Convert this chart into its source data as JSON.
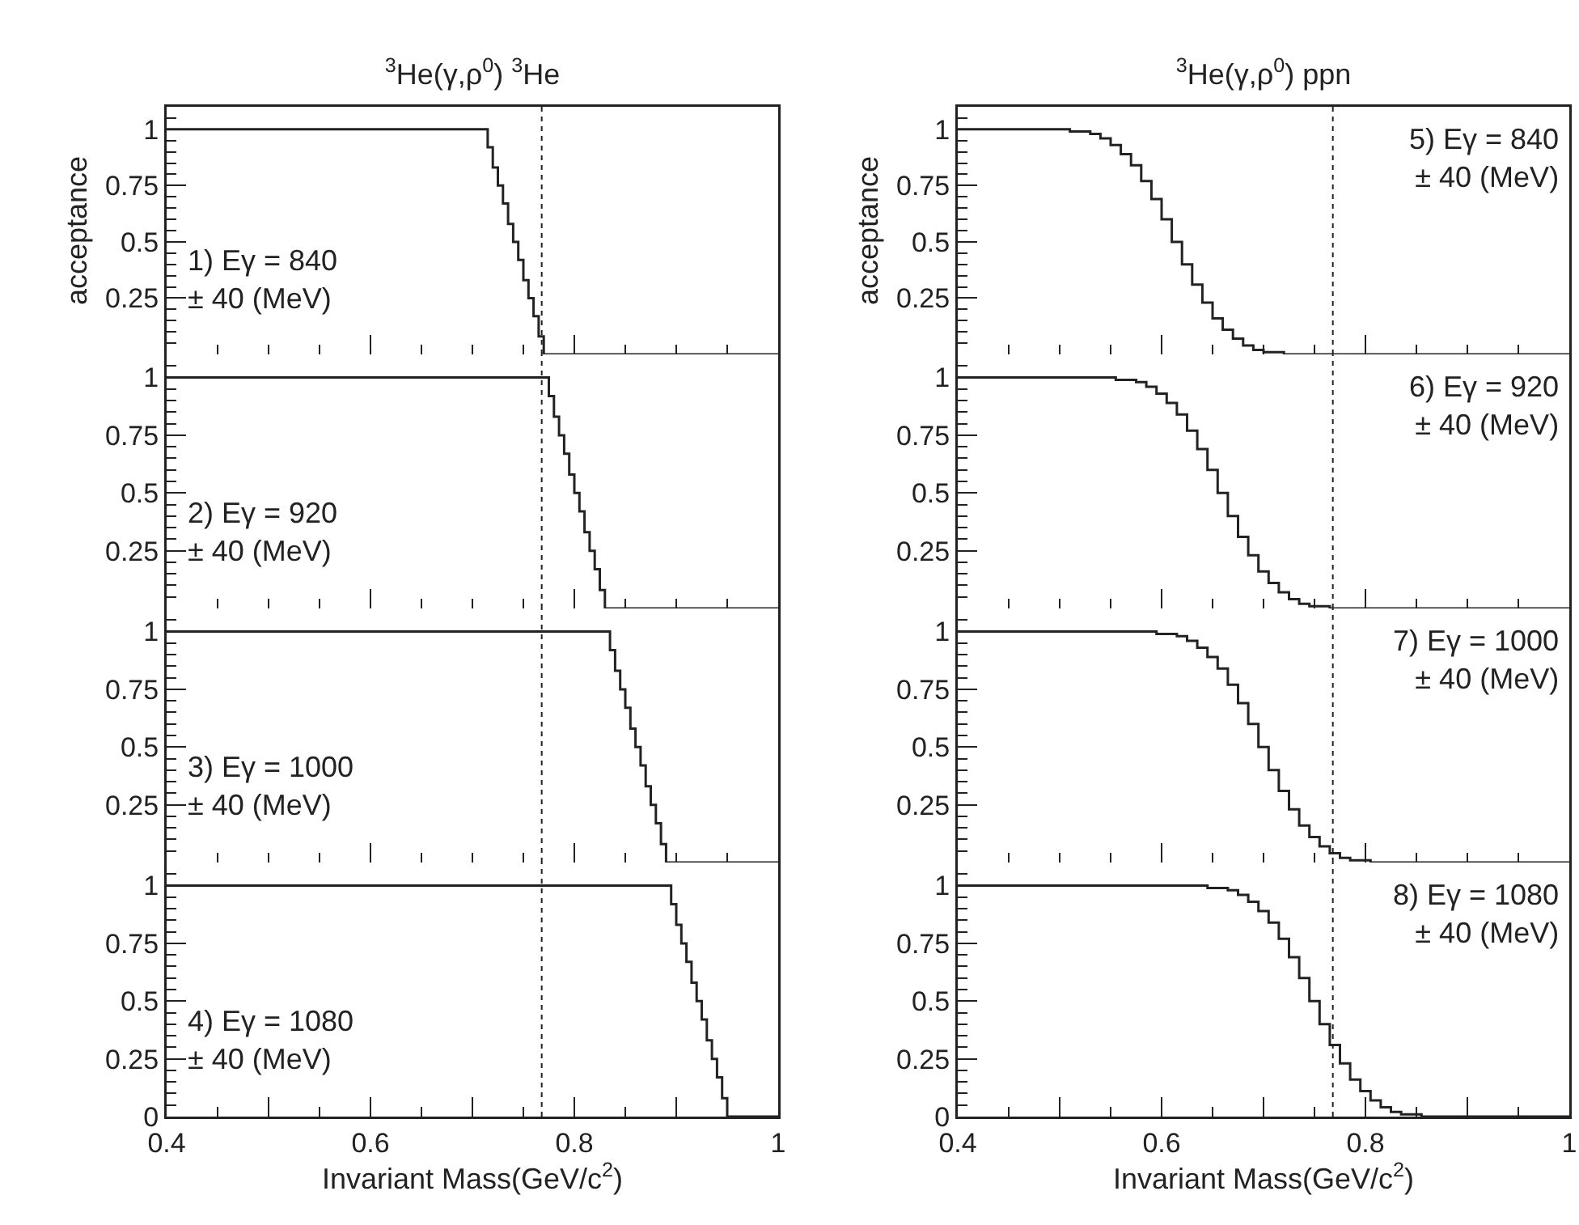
{
  "chart_data": [
    {
      "type": "step",
      "title": "$^{3}$He(γ,ρ$^{0}$) $^{3}$He",
      "ylabel": "acceptance",
      "color": "#222222",
      "x": [
        0.4,
        0.715,
        0.72,
        0.725,
        0.73,
        0.735,
        0.74,
        0.745,
        0.75,
        0.755,
        0.76,
        0.765,
        0.77,
        1
      ],
      "values": [
        1,
        0.92,
        0.83,
        0.75,
        0.67,
        0.58,
        0.5,
        0.42,
        0.33,
        0.25,
        0.17,
        0.08,
        0,
        0
      ],
      "xlim": [
        0.4,
        1
      ],
      "xticks": [
        0.4,
        {
          "value": 0.5,
          "label": null
        },
        0.6,
        {
          "value": 0.7,
          "label": null
        },
        0.8,
        {
          "value": 0.9,
          "label": null
        },
        1
      ],
      "ylim": [
        0,
        1.1
      ],
      "yticks": [
        0.25,
        0.5,
        0.75,
        1
      ],
      "tick_labels": "y",
      "ref_lines": [
        {
          "axis": "x",
          "value": 0.768,
          "line_style": "dotted"
        }
      ],
      "annotations": [
        "1) Eγ = 840\n± 40 (MeV)"
      ]
    },
    {
      "type": "step",
      "color": "#222222",
      "x": [
        0.4,
        0.775,
        0.78,
        0.785,
        0.79,
        0.795,
        0.8,
        0.805,
        0.81,
        0.815,
        0.82,
        0.825,
        0.83,
        1
      ],
      "values": [
        1,
        0.92,
        0.83,
        0.75,
        0.67,
        0.58,
        0.5,
        0.42,
        0.33,
        0.25,
        0.17,
        0.08,
        0,
        0
      ],
      "xlim": [
        0.4,
        1
      ],
      "xticks": [
        0.4,
        {
          "value": 0.5,
          "label": null
        },
        0.6,
        {
          "value": 0.7,
          "label": null
        },
        0.8,
        {
          "value": 0.9,
          "label": null
        },
        1
      ],
      "ylim": [
        0,
        1.1
      ],
      "yticks": [
        0.25,
        0.5,
        0.75,
        1
      ],
      "tick_labels": "y",
      "ref_lines": [
        {
          "axis": "x",
          "value": 0.768,
          "line_style": "dotted"
        }
      ],
      "annotations": [
        "2) Eγ = 920\n± 40 (MeV)"
      ]
    },
    {
      "type": "step",
      "color": "#222222",
      "x": [
        0.4,
        0.835,
        0.84,
        0.845,
        0.85,
        0.855,
        0.86,
        0.865,
        0.87,
        0.875,
        0.88,
        0.885,
        0.89,
        1
      ],
      "values": [
        1,
        0.92,
        0.83,
        0.75,
        0.67,
        0.58,
        0.5,
        0.42,
        0.33,
        0.25,
        0.17,
        0.08,
        0,
        0
      ],
      "xlim": [
        0.4,
        1
      ],
      "xticks": [
        0.4,
        {
          "value": 0.5,
          "label": null
        },
        0.6,
        {
          "value": 0.7,
          "label": null
        },
        0.8,
        {
          "value": 0.9,
          "label": null
        },
        1
      ],
      "ylim": [
        0,
        1.1
      ],
      "yticks": [
        0.25,
        0.5,
        0.75,
        1
      ],
      "tick_labels": "y",
      "ref_lines": [
        {
          "axis": "x",
          "value": 0.768,
          "line_style": "dotted"
        }
      ],
      "annotations": [
        "3) Eγ = 1000\n± 40 (MeV)"
      ]
    },
    {
      "type": "step",
      "xlabel": "Invariant Mass(GeV/c$^{2}$)",
      "color": "#222222",
      "x": [
        0.4,
        0.895,
        0.9,
        0.905,
        0.91,
        0.915,
        0.92,
        0.925,
        0.93,
        0.935,
        0.94,
        0.945,
        0.95,
        1
      ],
      "values": [
        1,
        0.92,
        0.83,
        0.75,
        0.67,
        0.58,
        0.5,
        0.42,
        0.33,
        0.25,
        0.17,
        0.08,
        0,
        0
      ],
      "xlim": [
        0.4,
        1
      ],
      "xticks": [
        0.4,
        {
          "value": 0.5,
          "label": null
        },
        0.6,
        {
          "value": 0.7,
          "label": null
        },
        0.8,
        {
          "value": 0.9,
          "label": null
        },
        1
      ],
      "ylim": [
        0,
        1.1
      ],
      "yticks": [
        0,
        0.25,
        0.5,
        0.75,
        1
      ],
      "ref_lines": [
        {
          "axis": "x",
          "value": 0.768,
          "line_style": "dotted"
        }
      ],
      "annotations": [
        "4) Eγ = 1080\n± 40 (MeV)"
      ]
    },
    {
      "type": "step",
      "title": "$^{3}$He(γ,ρ$^{0}$) ppn",
      "ylabel": "acceptance",
      "color": "#222222",
      "x": [
        0.4,
        0.49,
        0.5,
        0.51,
        0.52,
        0.53,
        0.54,
        0.55,
        0.56,
        0.57,
        0.58,
        0.59,
        0.6,
        0.61,
        0.62,
        0.63,
        0.64,
        0.65,
        0.66,
        0.67,
        0.68,
        0.69,
        0.7,
        0.71,
        0.72,
        0.73,
        1
      ],
      "values": [
        1,
        1,
        1,
        0.99,
        0.99,
        0.98,
        0.96,
        0.93,
        0.89,
        0.84,
        0.77,
        0.69,
        0.6,
        0.5,
        0.4,
        0.31,
        0.23,
        0.16,
        0.11,
        0.07,
        0.04,
        0.02,
        0.01,
        0.01,
        0,
        0,
        0
      ],
      "xlim": [
        0.4,
        1
      ],
      "xticks": [
        0.4,
        {
          "value": 0.5,
          "label": null
        },
        0.6,
        {
          "value": 0.7,
          "label": null
        },
        0.8,
        {
          "value": 0.9,
          "label": null
        },
        1
      ],
      "ylim": [
        0,
        1.1
      ],
      "yticks": [
        0.25,
        0.5,
        0.75,
        1
      ],
      "tick_labels": "y",
      "ref_lines": [
        {
          "axis": "x",
          "value": 0.768,
          "line_style": "dotted"
        }
      ],
      "annotations": [
        "5) Eγ = 840\n± 40 (MeV)"
      ]
    },
    {
      "type": "step",
      "color": "#222222",
      "x": [
        0.4,
        0.535,
        0.545,
        0.555,
        0.565,
        0.575,
        0.585,
        0.595,
        0.605,
        0.615,
        0.625,
        0.635,
        0.645,
        0.655,
        0.665,
        0.675,
        0.685,
        0.695,
        0.705,
        0.715,
        0.725,
        0.735,
        0.745,
        0.755,
        0.765,
        0.775,
        1
      ],
      "values": [
        1,
        1,
        1,
        0.99,
        0.99,
        0.98,
        0.96,
        0.93,
        0.89,
        0.84,
        0.77,
        0.69,
        0.6,
        0.5,
        0.4,
        0.31,
        0.23,
        0.16,
        0.11,
        0.07,
        0.04,
        0.02,
        0.01,
        0.01,
        0,
        0,
        0
      ],
      "xlim": [
        0.4,
        1
      ],
      "xticks": [
        0.4,
        {
          "value": 0.5,
          "label": null
        },
        0.6,
        {
          "value": 0.7,
          "label": null
        },
        0.8,
        {
          "value": 0.9,
          "label": null
        },
        1
      ],
      "ylim": [
        0,
        1.1
      ],
      "yticks": [
        0.25,
        0.5,
        0.75,
        1
      ],
      "tick_labels": "y",
      "ref_lines": [
        {
          "axis": "x",
          "value": 0.768,
          "line_style": "dotted"
        }
      ],
      "annotations": [
        "6) Eγ = 920\n± 40 (MeV)"
      ]
    },
    {
      "type": "step",
      "color": "#222222",
      "x": [
        0.4,
        0.575,
        0.585,
        0.595,
        0.605,
        0.615,
        0.625,
        0.635,
        0.645,
        0.655,
        0.665,
        0.675,
        0.685,
        0.695,
        0.705,
        0.715,
        0.725,
        0.735,
        0.745,
        0.755,
        0.765,
        0.775,
        0.785,
        0.795,
        0.805,
        0.815,
        1
      ],
      "values": [
        1,
        1,
        1,
        0.99,
        0.99,
        0.98,
        0.96,
        0.93,
        0.89,
        0.84,
        0.77,
        0.69,
        0.6,
        0.5,
        0.4,
        0.31,
        0.23,
        0.16,
        0.11,
        0.07,
        0.04,
        0.02,
        0.01,
        0.01,
        0,
        0,
        0
      ],
      "xlim": [
        0.4,
        1
      ],
      "xticks": [
        0.4,
        {
          "value": 0.5,
          "label": null
        },
        0.6,
        {
          "value": 0.7,
          "label": null
        },
        0.8,
        {
          "value": 0.9,
          "label": null
        },
        1
      ],
      "ylim": [
        0,
        1.1
      ],
      "yticks": [
        0.25,
        0.5,
        0.75,
        1
      ],
      "tick_labels": "y",
      "ref_lines": [
        {
          "axis": "x",
          "value": 0.768,
          "line_style": "dotted"
        }
      ],
      "annotations": [
        "7) Eγ = 1000\n± 40 (MeV)"
      ]
    },
    {
      "type": "step",
      "xlabel": "Invariant Mass(GeV/c$^{2}$)",
      "color": "#222222",
      "x": [
        0.4,
        0.625,
        0.635,
        0.645,
        0.655,
        0.665,
        0.675,
        0.685,
        0.695,
        0.705,
        0.715,
        0.725,
        0.735,
        0.745,
        0.755,
        0.765,
        0.775,
        0.785,
        0.795,
        0.805,
        0.815,
        0.825,
        0.835,
        0.845,
        0.855,
        0.865,
        1
      ],
      "values": [
        1,
        1,
        1,
        0.99,
        0.99,
        0.98,
        0.96,
        0.93,
        0.89,
        0.84,
        0.77,
        0.69,
        0.6,
        0.5,
        0.4,
        0.31,
        0.23,
        0.16,
        0.11,
        0.07,
        0.04,
        0.02,
        0.01,
        0.01,
        0,
        0,
        0
      ],
      "xlim": [
        0.4,
        1
      ],
      "xticks": [
        0.4,
        {
          "value": 0.5,
          "label": null
        },
        0.6,
        {
          "value": 0.7,
          "label": null
        },
        0.8,
        {
          "value": 0.9,
          "label": null
        },
        1
      ],
      "ylim": [
        0,
        1.1
      ],
      "yticks": [
        0,
        0.25,
        0.5,
        0.75,
        1
      ],
      "ref_lines": [
        {
          "axis": "x",
          "value": 0.768,
          "line_style": "dotted"
        }
      ],
      "annotations": [
        "8) Eγ = 1080\n± 40 (MeV)"
      ]
    }
  ]
}
